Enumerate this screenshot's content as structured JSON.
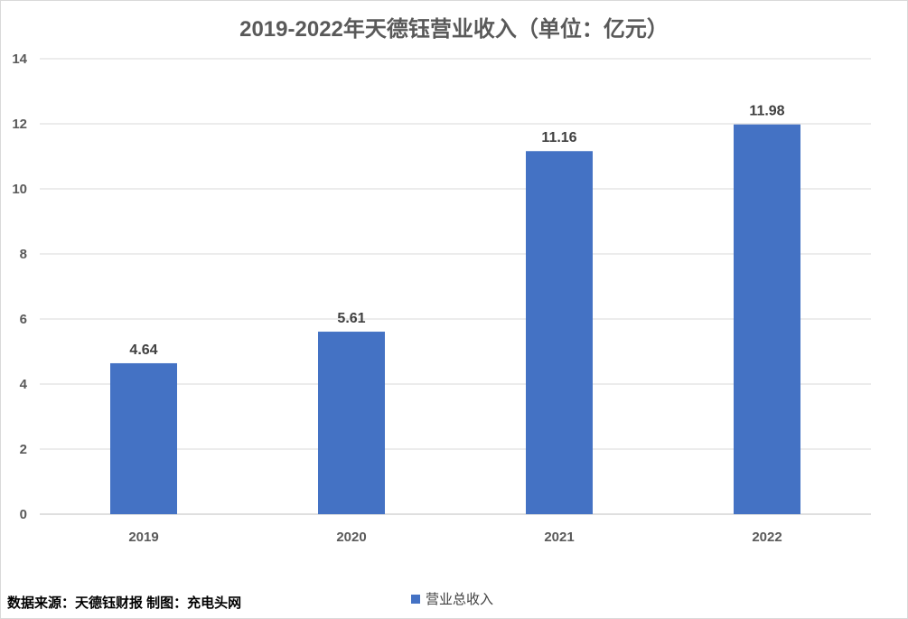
{
  "chart_data": {
    "type": "bar",
    "title": "2019-2022年天德钰营业收入（单位：亿元）",
    "categories": [
      "2019",
      "2020",
      "2021",
      "2022"
    ],
    "series": [
      {
        "name": "营业总收入",
        "values": [
          4.64,
          5.61,
          11.16,
          11.98
        ],
        "color": "#4472c4"
      }
    ],
    "data_labels": [
      "4.64",
      "5.61",
      "11.16",
      "11.98"
    ],
    "ylim": [
      0,
      14
    ],
    "yticks": [
      0,
      2,
      4,
      6,
      8,
      10,
      12,
      14
    ],
    "grid": true,
    "legend_position": "bottom"
  },
  "source_note": "数据来源：天德钰财报  制图：充电头网"
}
